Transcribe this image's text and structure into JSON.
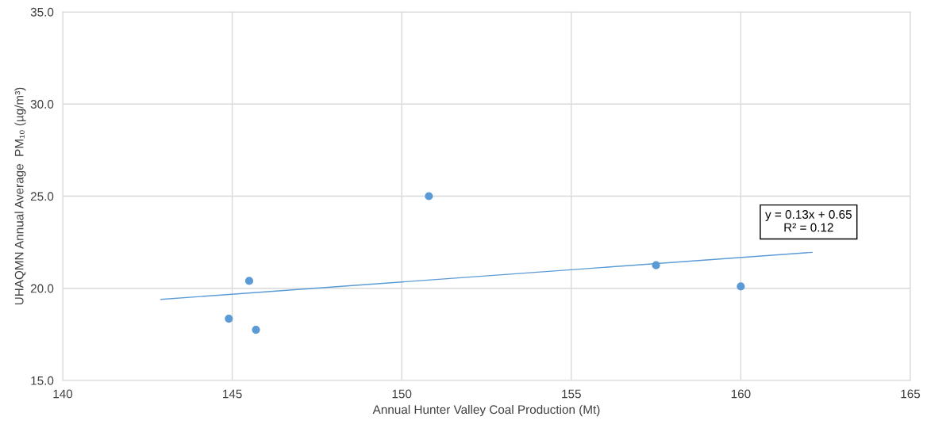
{
  "chart_data": {
    "type": "scatter",
    "xlabel": "Annual Hunter Valley Coal Production (Mt)",
    "ylabel": "UHAQMN Annual Average  PM₁₀ (µg/m³)",
    "series": [
      {
        "color": "#5b9bd5",
        "x": [
          144.9,
          145.5,
          145.7,
          150.8,
          157.5,
          160.0
        ],
        "values": [
          18.35,
          20.4,
          17.75,
          25.0,
          21.25,
          20.1
        ],
        "marker": "circle"
      },
      {
        "type": "line",
        "color": "#5b9bd5",
        "x": [
          142.9,
          162.1
        ],
        "values": [
          19.4,
          21.95
        ],
        "marker": "none",
        "line_style": "solid"
      }
    ],
    "annotations": [
      "y = 0.13x + 0.65\nR² = 0.12"
    ],
    "xlim": [
      140,
      165
    ],
    "xticks": [
      140,
      145,
      150,
      155,
      160,
      165
    ],
    "ylim": [
      15,
      35
    ],
    "yticks": [
      {
        "value": 15,
        "label": "15.0"
      },
      {
        "value": 20,
        "label": "20.0"
      },
      {
        "value": 25,
        "label": "25.0"
      },
      {
        "value": 30,
        "label": "30.0"
      },
      {
        "value": 35,
        "label": "35.0"
      }
    ],
    "grid": true,
    "legend": false
  }
}
